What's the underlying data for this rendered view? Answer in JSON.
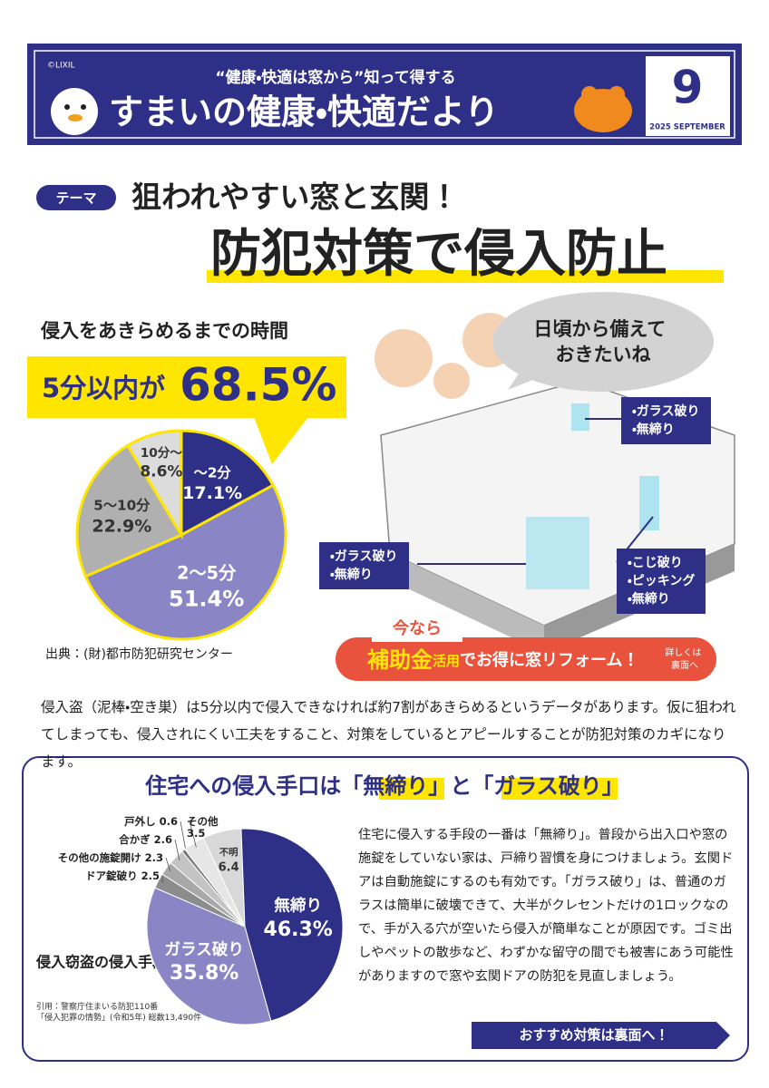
{
  "header": {
    "copyright": "©LIXIL",
    "subtitle": "“健康・快適は窓から”知って得する",
    "title": "すまいの健康・快適だより",
    "issue_number": "9",
    "issue_date": "2025 SEPTEMBER"
  },
  "theme": {
    "tag": "テーマ",
    "headline": "狙われやすい窓と玄関！",
    "main_headline": "防犯対策で侵入防止"
  },
  "highlight": {
    "text": "5分以内が",
    "value": "68.5%"
  },
  "chart_data": [
    {
      "type": "pie",
      "title": "侵入をあきらめるまでの時間",
      "categories": [
        "〜2分",
        "2〜5分",
        "5〜10分",
        "10分〜"
      ],
      "values": [
        17.1,
        51.4,
        22.9,
        8.6
      ],
      "value_labels": [
        "17.1%",
        "51.4%",
        "22.9%",
        "8.6%"
      ],
      "colors": [
        "#2e2f86",
        "#8a86c6",
        "#b0b0b0",
        "#dcdcdc"
      ],
      "source": "出典：(財)都市防犯研究センター"
    },
    {
      "type": "pie",
      "title": "侵入窃盗の侵入手段（戸建住宅）",
      "categories": [
        "不明",
        "無締り",
        "ガラス破り",
        "ドア錠破り",
        "その他の施錠開け",
        "合かぎ",
        "戸外し",
        "その他"
      ],
      "values": [
        6.4,
        46.3,
        35.8,
        2.5,
        2.3,
        2.6,
        0.6,
        3.5
      ],
      "value_labels": [
        "6.4",
        "46.3%",
        "35.8%",
        "2.5",
        "2.3",
        "2.6",
        "0.6",
        "3.5"
      ],
      "colors": [
        "#d8d8d8",
        "#2e2f86",
        "#8a86c6",
        "#8c8c8c",
        "#a8a8a8",
        "#c4c4c4",
        "#7a7a7a",
        "#e6e6e6"
      ],
      "source": [
        "引用：警察庁住まいる防犯110番",
        "「侵入犯罪の情勢」(令和5年) 総数13,490件"
      ]
    }
  ],
  "illustration": {
    "speech": [
      "日頃から備えて",
      "おきたいね"
    ],
    "callouts": [
      [
        "ガラス破り",
        "無締り"
      ],
      [
        "ガラス破り",
        "無締り"
      ],
      [
        "こじ破り",
        "ピッキング",
        "無締り"
      ]
    ]
  },
  "banner": {
    "tag": "今なら",
    "keyword": "補助金",
    "keyword_suffix": "活用",
    "text": "でお得に窓リフォーム！",
    "detail": [
      "詳しくは",
      "裏面へ"
    ]
  },
  "intro": "侵入盗（泥棒・空き巣）は5分以内で侵入できなければ約7割があきらめるというデータがあります。仮に狙われてしまっても、侵入されにくい工夫をすること、対策をしているとアピールすることが防犯対策のカギになります。",
  "section": {
    "title": "住宅への侵入手口は「無締り」と「ガラス破り」",
    "body": "住宅に侵入する手段の一番は「無締り」。普段から出入口や窓の施錠をしていない家は、戸締り習慣を身につけましょう。玄関ドアは自動施錠にするのも有効です。「ガラス破り」は、普通のガラスは簡単に破壊できて、大半がクレセントだけの1ロックなので、手が入る穴が空いたら侵入が簡単なことが原因です。ゴミ出しやペットの散歩など、わずかな留守の間でも被害にあう可能性がありますので窓や玄関ドアの防犯を見直しましょう。",
    "button": "おすすめ対策は裏面へ！"
  }
}
